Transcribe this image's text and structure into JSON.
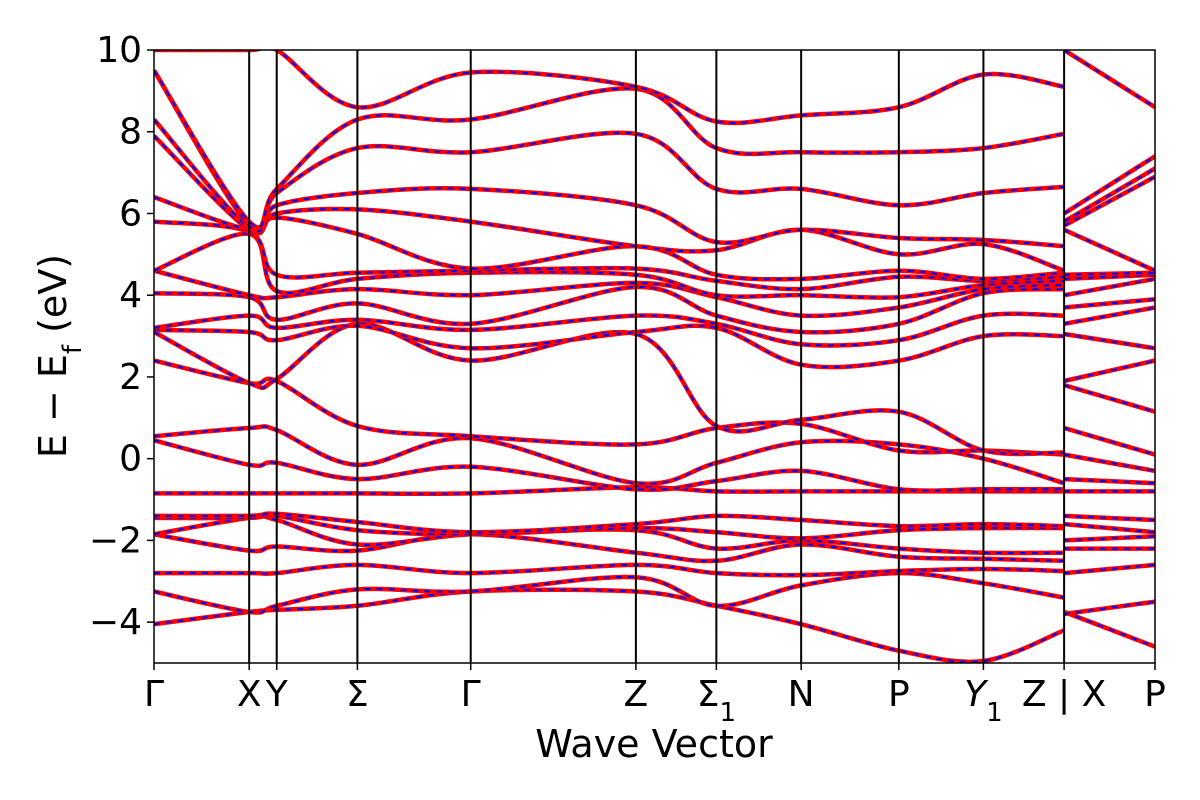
{
  "chart_data": {
    "type": "line",
    "title": "",
    "xlabel": "Wave Vector",
    "ylabel": "E − E",
    "ylabel_sub": "f",
    "ylabel_unit": " (eV)",
    "ylim": [
      -5,
      10
    ],
    "yticks": [
      {
        "value": -4,
        "label": "−4"
      },
      {
        "value": -2,
        "label": "−2"
      },
      {
        "value": 0,
        "label": "0"
      },
      {
        "value": 2,
        "label": "2"
      },
      {
        "value": 4,
        "label": "4"
      },
      {
        "value": 6,
        "label": "6"
      },
      {
        "value": 8,
        "label": "8"
      },
      {
        "value": 10,
        "label": "10"
      }
    ],
    "xlim": [
      0,
      1
    ],
    "kpoints": [
      {
        "pos": 0.0,
        "label": "Γ"
      },
      {
        "pos": 0.0951,
        "label": "X"
      },
      {
        "pos": 0.1226,
        "label": "Y"
      },
      {
        "pos": 0.2032,
        "label": "Σ"
      },
      {
        "pos": 0.3164,
        "label": "Γ"
      },
      {
        "pos": 0.4814,
        "label": "Z"
      },
      {
        "pos": 0.5618,
        "label": "Σ",
        "sub": "1"
      },
      {
        "pos": 0.6465,
        "label": "N"
      },
      {
        "pos": 0.7441,
        "label": "P"
      },
      {
        "pos": 0.8286,
        "label": "Y",
        "sub": "1"
      },
      {
        "pos": 0.9092,
        "label": "Z | X"
      },
      {
        "pos": 1.0,
        "label": "P"
      }
    ],
    "series_styles": [
      {
        "color": "#ff0000",
        "style": "solid"
      },
      {
        "color": "#0000ff",
        "style": "dashed"
      }
    ],
    "bands": [
      [
        [
          0,
          -4.05
        ],
        [
          0.0951,
          -3.75
        ],
        [
          0.1226,
          -3.7
        ],
        [
          0.2032,
          -3.6
        ],
        [
          0.3164,
          -3.25
        ],
        [
          0.4814,
          -3.25
        ],
        [
          0.5618,
          -3.6
        ],
        [
          0.6465,
          -4.05
        ],
        [
          0.7441,
          -4.7
        ],
        [
          0.8286,
          -4.95
        ],
        [
          0.9092,
          -4.2
        ],
        [
          0.9092,
          -3.75
        ],
        [
          1.0,
          -4.6
        ]
      ],
      [
        [
          0,
          -3.25
        ],
        [
          0.0951,
          -3.75
        ],
        [
          0.1226,
          -3.6
        ],
        [
          0.2032,
          -3.2
        ],
        [
          0.3164,
          -3.25
        ],
        [
          0.4814,
          -2.9
        ],
        [
          0.5618,
          -3.6
        ],
        [
          0.6465,
          -3.1
        ],
        [
          0.7441,
          -2.8
        ],
        [
          0.8286,
          -3.05
        ],
        [
          0.9092,
          -3.4
        ],
        [
          0.9092,
          -3.8
        ],
        [
          1.0,
          -3.5
        ]
      ],
      [
        [
          0,
          -2.8
        ],
        [
          0.0951,
          -2.8
        ],
        [
          0.1226,
          -2.8
        ],
        [
          0.2032,
          -2.6
        ],
        [
          0.3164,
          -2.8
        ],
        [
          0.4814,
          -2.6
        ],
        [
          0.5618,
          -2.8
        ],
        [
          0.6465,
          -2.85
        ],
        [
          0.7441,
          -2.75
        ],
        [
          0.8286,
          -2.7
        ],
        [
          0.9092,
          -2.75
        ],
        [
          0.9092,
          -2.8
        ],
        [
          1.0,
          -2.6
        ]
      ],
      [
        [
          0,
          -1.85
        ],
        [
          0.0951,
          -2.25
        ],
        [
          0.1226,
          -2.15
        ],
        [
          0.2032,
          -2.25
        ],
        [
          0.3164,
          -1.85
        ],
        [
          0.4814,
          -2.3
        ],
        [
          0.5618,
          -2.5
        ],
        [
          0.6465,
          -2.1
        ],
        [
          0.7441,
          -2.4
        ],
        [
          0.8286,
          -2.45
        ],
        [
          0.9092,
          -2.5
        ],
        [
          0.9092,
          -2.2
        ],
        [
          1.0,
          -2.2
        ]
      ],
      [
        [
          0,
          -1.85
        ],
        [
          0.0951,
          -1.45
        ],
        [
          0.1226,
          -1.5
        ],
        [
          0.2032,
          -2.1
        ],
        [
          0.3164,
          -1.85
        ],
        [
          0.4814,
          -1.75
        ],
        [
          0.5618,
          -2.2
        ],
        [
          0.6465,
          -2.0
        ],
        [
          0.7441,
          -2.2
        ],
        [
          0.8286,
          -2.3
        ],
        [
          0.9092,
          -2.3
        ],
        [
          0.9092,
          -2.0
        ],
        [
          1.0,
          -1.9
        ]
      ],
      [
        [
          0,
          -1.45
        ],
        [
          0.0951,
          -1.45
        ],
        [
          0.1226,
          -1.4
        ],
        [
          0.2032,
          -1.75
        ],
        [
          0.3164,
          -1.85
        ],
        [
          0.4814,
          -1.7
        ],
        [
          0.5618,
          -1.8
        ],
        [
          0.6465,
          -1.95
        ],
        [
          0.7441,
          -1.75
        ],
        [
          0.8286,
          -1.7
        ],
        [
          0.9092,
          -1.7
        ],
        [
          0.9092,
          -1.6
        ],
        [
          1.0,
          -1.8
        ]
      ],
      [
        [
          0,
          -1.4
        ],
        [
          0.0951,
          -1.4
        ],
        [
          0.1226,
          -1.35
        ],
        [
          0.2032,
          -1.55
        ],
        [
          0.3164,
          -1.8
        ],
        [
          0.4814,
          -1.6
        ],
        [
          0.5618,
          -1.4
        ],
        [
          0.6465,
          -1.5
        ],
        [
          0.7441,
          -1.65
        ],
        [
          0.8286,
          -1.6
        ],
        [
          0.9092,
          -1.65
        ],
        [
          0.9092,
          -1.4
        ],
        [
          1.0,
          -1.5
        ]
      ],
      [
        [
          0,
          -0.85
        ],
        [
          0.0951,
          -0.85
        ],
        [
          0.1226,
          -0.85
        ],
        [
          0.2032,
          -0.85
        ],
        [
          0.3164,
          -0.85
        ],
        [
          0.4814,
          -0.7
        ],
        [
          0.5618,
          -0.8
        ],
        [
          0.6465,
          -0.8
        ],
        [
          0.7441,
          -0.8
        ],
        [
          0.8286,
          -0.8
        ],
        [
          0.9092,
          -0.8
        ],
        [
          0.9092,
          -0.8
        ],
        [
          1.0,
          -0.8
        ]
      ],
      [
        [
          0,
          0.45
        ],
        [
          0.0951,
          -0.15
        ],
        [
          0.1226,
          -0.1
        ],
        [
          0.2032,
          -0.5
        ],
        [
          0.3164,
          -0.2
        ],
        [
          0.4814,
          -0.75
        ],
        [
          0.5618,
          -0.55
        ],
        [
          0.6465,
          -0.3
        ],
        [
          0.7441,
          -0.75
        ],
        [
          0.8286,
          -0.75
        ],
        [
          0.9092,
          -0.75
        ],
        [
          0.9092,
          -0.5
        ],
        [
          1.0,
          -0.6
        ]
      ],
      [
        [
          0,
          0.55
        ],
        [
          0.0951,
          0.75
        ],
        [
          0.1226,
          0.7
        ],
        [
          0.2032,
          -0.15
        ],
        [
          0.3164,
          0.5
        ],
        [
          0.4814,
          -0.6
        ],
        [
          0.5618,
          -0.1
        ],
        [
          0.6465,
          0.4
        ],
        [
          0.7441,
          0.35
        ],
        [
          0.8286,
          0.0
        ],
        [
          0.9092,
          -0.6
        ],
        [
          0.9092,
          0.1
        ],
        [
          1.0,
          -0.3
        ]
      ],
      [
        [
          0,
          2.4
        ],
        [
          0.0951,
          1.85
        ],
        [
          0.1226,
          1.9
        ],
        [
          0.2032,
          0.8
        ],
        [
          0.3164,
          0.55
        ],
        [
          0.4814,
          0.35
        ],
        [
          0.5618,
          0.75
        ],
        [
          0.6465,
          0.85
        ],
        [
          0.7441,
          0.2
        ],
        [
          0.8286,
          0.2
        ],
        [
          0.9092,
          0.1
        ],
        [
          0.9092,
          0.75
        ],
        [
          1.0,
          0.1
        ]
      ],
      [
        [
          0,
          3.1
        ],
        [
          0.0951,
          1.85
        ],
        [
          0.1226,
          1.95
        ],
        [
          0.2032,
          3.3
        ],
        [
          0.3164,
          2.4
        ],
        [
          0.4814,
          3.05
        ],
        [
          0.5618,
          0.8
        ],
        [
          0.6465,
          0.95
        ],
        [
          0.7441,
          1.15
        ],
        [
          0.8286,
          0.2
        ],
        [
          0.9092,
          0.15
        ],
        [
          0.9092,
          1.8
        ],
        [
          1.0,
          1.15
        ]
      ],
      [
        [
          0,
          3.15
        ],
        [
          0.0951,
          3.1
        ],
        [
          0.1226,
          2.9
        ],
        [
          0.2032,
          3.25
        ],
        [
          0.3164,
          2.7
        ],
        [
          0.4814,
          3.1
        ],
        [
          0.5618,
          3.2
        ],
        [
          0.6465,
          2.3
        ],
        [
          0.7441,
          2.4
        ],
        [
          0.8286,
          3.0
        ],
        [
          0.9092,
          3.0
        ],
        [
          0.9092,
          1.9
        ],
        [
          1.0,
          2.4
        ]
      ],
      [
        [
          0,
          3.2
        ],
        [
          0.0951,
          3.5
        ],
        [
          0.1226,
          3.2
        ],
        [
          0.2032,
          3.4
        ],
        [
          0.3164,
          3.15
        ],
        [
          0.4814,
          3.5
        ],
        [
          0.5618,
          3.3
        ],
        [
          0.6465,
          2.8
        ],
        [
          0.7441,
          2.9
        ],
        [
          0.8286,
          3.5
        ],
        [
          0.9092,
          3.5
        ],
        [
          0.9092,
          3.05
        ],
        [
          1.0,
          2.7
        ]
      ],
      [
        [
          0,
          4.05
        ],
        [
          0.0951,
          3.95
        ],
        [
          0.1226,
          3.4
        ],
        [
          0.2032,
          3.8
        ],
        [
          0.3164,
          3.3
        ],
        [
          0.4814,
          4.2
        ],
        [
          0.5618,
          3.5
        ],
        [
          0.6465,
          3.1
        ],
        [
          0.7441,
          3.3
        ],
        [
          0.8286,
          4.05
        ],
        [
          0.9092,
          4.15
        ],
        [
          0.9092,
          3.3
        ],
        [
          1.0,
          3.7
        ]
      ],
      [
        [
          0,
          4.6
        ],
        [
          0.0951,
          4.0
        ],
        [
          0.1226,
          3.95
        ],
        [
          0.2032,
          4.15
        ],
        [
          0.3164,
          4.0
        ],
        [
          0.4814,
          4.3
        ],
        [
          0.5618,
          3.95
        ],
        [
          0.6465,
          3.5
        ],
        [
          0.7441,
          3.7
        ],
        [
          0.8286,
          4.15
        ],
        [
          0.9092,
          4.25
        ],
        [
          0.9092,
          3.7
        ],
        [
          1.0,
          3.9
        ]
      ],
      [
        [
          0,
          4.6
        ],
        [
          0.0951,
          5.5
        ],
        [
          0.1226,
          4.1
        ],
        [
          0.2032,
          4.4
        ],
        [
          0.3164,
          4.55
        ],
        [
          0.4814,
          4.5
        ],
        [
          0.5618,
          4.0
        ],
        [
          0.6465,
          4.0
        ],
        [
          0.7441,
          3.95
        ],
        [
          0.8286,
          4.25
        ],
        [
          0.9092,
          4.35
        ],
        [
          0.9092,
          4.0
        ],
        [
          1.0,
          4.4
        ]
      ],
      [
        [
          0,
          5.8
        ],
        [
          0.0951,
          5.55
        ],
        [
          0.1226,
          4.5
        ],
        [
          0.2032,
          4.55
        ],
        [
          0.3164,
          4.6
        ],
        [
          0.4814,
          4.65
        ],
        [
          0.5618,
          4.35
        ],
        [
          0.6465,
          4.15
        ],
        [
          0.7441,
          4.45
        ],
        [
          0.8286,
          4.35
        ],
        [
          0.9092,
          4.45
        ],
        [
          0.9092,
          4.4
        ],
        [
          1.0,
          4.5
        ]
      ],
      [
        [
          0,
          6.4
        ],
        [
          0.0951,
          5.6
        ],
        [
          0.1226,
          5.9
        ],
        [
          0.2032,
          5.5
        ],
        [
          0.3164,
          4.65
        ],
        [
          0.4814,
          5.2
        ],
        [
          0.5618,
          4.5
        ],
        [
          0.6465,
          4.4
        ],
        [
          0.7441,
          4.6
        ],
        [
          0.8286,
          4.4
        ],
        [
          0.9092,
          4.55
        ],
        [
          0.9092,
          4.5
        ],
        [
          1.0,
          4.55
        ]
      ],
      [
        [
          0,
          7.9
        ],
        [
          0.0951,
          5.6
        ],
        [
          0.1226,
          6.0
        ],
        [
          0.2032,
          6.1
        ],
        [
          0.3164,
          5.8
        ],
        [
          0.4814,
          5.2
        ],
        [
          0.5618,
          5.1
        ],
        [
          0.6465,
          5.6
        ],
        [
          0.7441,
          5.0
        ],
        [
          0.8286,
          5.25
        ],
        [
          0.9092,
          4.6
        ],
        [
          0.9092,
          5.6
        ],
        [
          1.0,
          4.6
        ]
      ],
      [
        [
          0,
          8.3
        ],
        [
          0.0951,
          5.65
        ],
        [
          0.1226,
          6.2
        ],
        [
          0.2032,
          6.5
        ],
        [
          0.3164,
          6.6
        ],
        [
          0.4814,
          6.2
        ],
        [
          0.5618,
          5.3
        ],
        [
          0.6465,
          5.6
        ],
        [
          0.7441,
          5.4
        ],
        [
          0.8286,
          5.35
        ],
        [
          0.9092,
          5.2
        ],
        [
          0.9092,
          5.7
        ],
        [
          1.0,
          6.9
        ]
      ],
      [
        [
          0,
          9.5
        ],
        [
          0.0951,
          5.7
        ],
        [
          0.1226,
          6.5
        ],
        [
          0.2032,
          7.6
        ],
        [
          0.3164,
          7.5
        ],
        [
          0.4814,
          7.95
        ],
        [
          0.5618,
          6.6
        ],
        [
          0.6465,
          6.6
        ],
        [
          0.7441,
          6.2
        ],
        [
          0.8286,
          6.5
        ],
        [
          0.9092,
          6.65
        ],
        [
          0.9092,
          5.8
        ],
        [
          1.0,
          7.1
        ]
      ],
      [
        [
          0,
          9.5
        ],
        [
          0.0951,
          5.8
        ],
        [
          0.1226,
          6.6
        ],
        [
          0.2032,
          8.3
        ],
        [
          0.3164,
          8.3
        ],
        [
          0.4814,
          9.05
        ],
        [
          0.5618,
          7.6
        ],
        [
          0.6465,
          7.5
        ],
        [
          0.7441,
          7.5
        ],
        [
          0.8286,
          7.6
        ],
        [
          0.9092,
          7.95
        ],
        [
          0.9092,
          6.0
        ],
        [
          1.0,
          7.4
        ]
      ],
      [
        [
          0,
          10.0
        ],
        [
          0.0951,
          10.0
        ],
        [
          0.1226,
          10.0
        ],
        [
          0.2032,
          8.6
        ],
        [
          0.3164,
          9.45
        ],
        [
          0.4814,
          9.1
        ],
        [
          0.5618,
          8.25
        ],
        [
          0.6465,
          8.4
        ],
        [
          0.7441,
          8.6
        ],
        [
          0.8286,
          9.4
        ],
        [
          0.9092,
          9.1
        ],
        [
          0.9092,
          10.0
        ],
        [
          1.0,
          8.6
        ]
      ]
    ]
  }
}
